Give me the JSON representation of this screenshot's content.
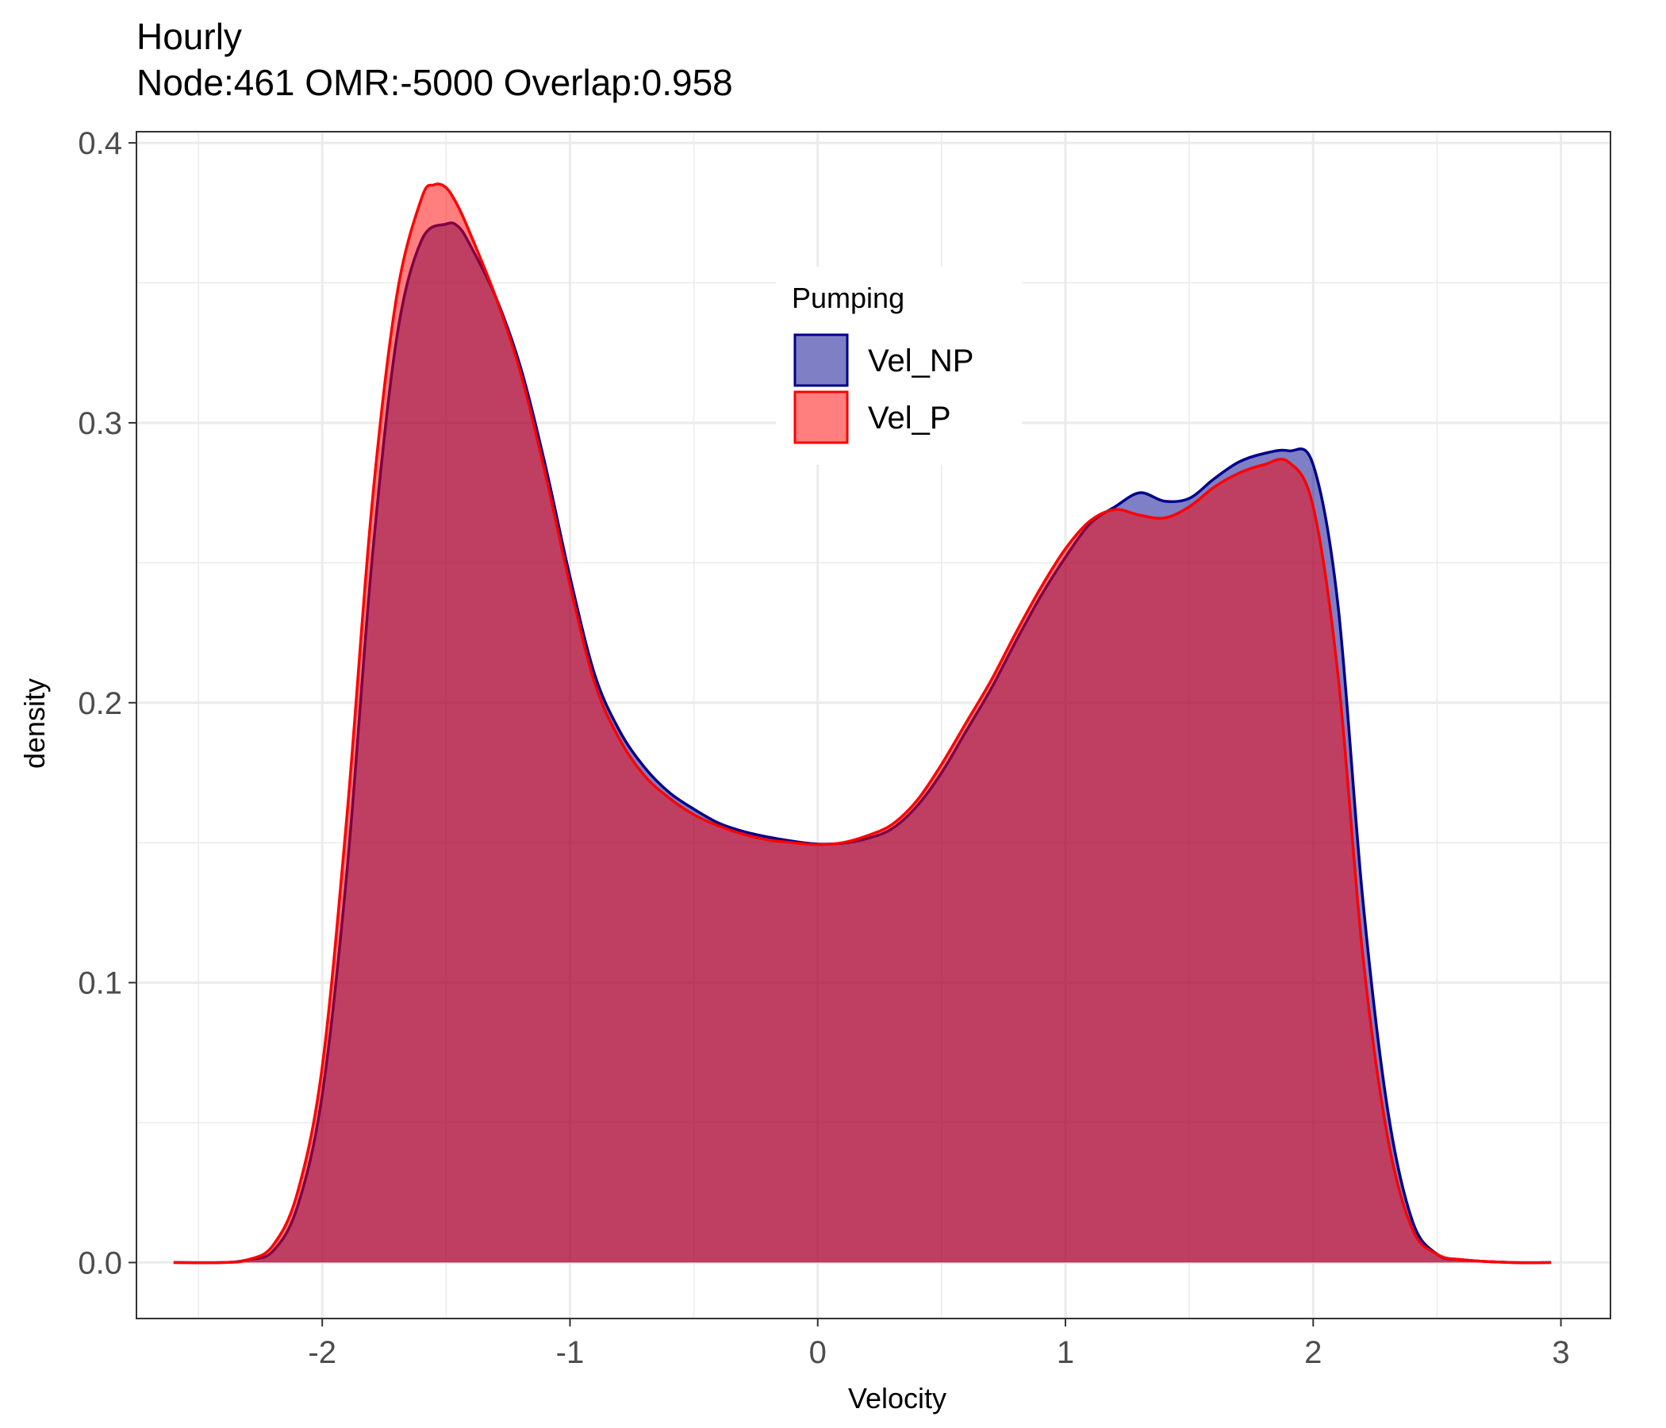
{
  "chart_data": {
    "type": "area",
    "title": "Hourly",
    "subtitle": "Node:461 OMR:-5000  Overlap:0.958",
    "xlabel": "Velocity",
    "ylabel": "density",
    "xlim": [
      -2.75,
      3.2
    ],
    "ylim": [
      -0.02,
      0.404
    ],
    "x_ticks": [
      -2,
      -1,
      0,
      1,
      2,
      3
    ],
    "y_ticks": [
      0.0,
      0.1,
      0.2,
      0.3,
      0.4
    ],
    "x_tick_labels": [
      "-2",
      "-1",
      "0",
      "1",
      "2",
      "3"
    ],
    "y_tick_labels": [
      "0.0",
      "0.1",
      "0.2",
      "0.3",
      "0.4"
    ],
    "grid": true,
    "legend": {
      "title": "Pumping",
      "position": "top-center-inside"
    },
    "series": [
      {
        "name": "Vel_NP",
        "fill": "#00008b",
        "stroke": "#00008b",
        "fill_opacity": 0.5,
        "x": [
          -2.6,
          -2.4,
          -2.3,
          -2.2,
          -2.1,
          -2.0,
          -1.9,
          -1.8,
          -1.7,
          -1.6,
          -1.5,
          -1.45,
          -1.4,
          -1.3,
          -1.2,
          -1.1,
          -1.0,
          -0.9,
          -0.8,
          -0.7,
          -0.6,
          -0.5,
          -0.4,
          -0.3,
          -0.2,
          -0.1,
          0.0,
          0.1,
          0.2,
          0.3,
          0.4,
          0.5,
          0.6,
          0.7,
          0.8,
          0.9,
          1.0,
          1.1,
          1.2,
          1.3,
          1.4,
          1.5,
          1.6,
          1.7,
          1.8,
          1.9,
          2.0,
          2.1,
          2.2,
          2.3,
          2.4,
          2.5,
          2.6,
          2.8,
          2.96
        ],
        "y": [
          0.0,
          0.0,
          0.001,
          0.004,
          0.02,
          0.06,
          0.14,
          0.25,
          0.33,
          0.365,
          0.371,
          0.37,
          0.363,
          0.345,
          0.32,
          0.285,
          0.245,
          0.21,
          0.19,
          0.177,
          0.168,
          0.162,
          0.157,
          0.154,
          0.152,
          0.1505,
          0.1495,
          0.1498,
          0.1515,
          0.155,
          0.163,
          0.175,
          0.19,
          0.205,
          0.222,
          0.238,
          0.252,
          0.264,
          0.27,
          0.275,
          0.272,
          0.273,
          0.28,
          0.286,
          0.289,
          0.29,
          0.285,
          0.235,
          0.13,
          0.055,
          0.015,
          0.003,
          0.001,
          0.0,
          0.0
        ]
      },
      {
        "name": "Vel_P",
        "fill": "#ff0000",
        "stroke": "#ff0000",
        "fill_opacity": 0.5,
        "x": [
          -2.6,
          -2.4,
          -2.3,
          -2.2,
          -2.1,
          -2.0,
          -1.9,
          -1.8,
          -1.7,
          -1.6,
          -1.55,
          -1.5,
          -1.45,
          -1.4,
          -1.3,
          -1.2,
          -1.1,
          -1.0,
          -0.9,
          -0.8,
          -0.7,
          -0.6,
          -0.5,
          -0.4,
          -0.3,
          -0.2,
          -0.1,
          0.0,
          0.1,
          0.2,
          0.3,
          0.4,
          0.5,
          0.6,
          0.7,
          0.8,
          0.9,
          1.0,
          1.1,
          1.2,
          1.3,
          1.4,
          1.5,
          1.6,
          1.7,
          1.8,
          1.9,
          2.0,
          2.1,
          2.2,
          2.3,
          2.4,
          2.5,
          2.6,
          2.8,
          2.96
        ],
        "y": [
          0.0,
          0.0,
          0.001,
          0.006,
          0.025,
          0.07,
          0.16,
          0.27,
          0.345,
          0.38,
          0.385,
          0.384,
          0.377,
          0.367,
          0.345,
          0.318,
          0.282,
          0.242,
          0.207,
          0.187,
          0.174,
          0.166,
          0.16,
          0.156,
          0.153,
          0.151,
          0.15,
          0.1493,
          0.15,
          0.1525,
          0.1565,
          0.165,
          0.178,
          0.193,
          0.208,
          0.225,
          0.241,
          0.255,
          0.265,
          0.269,
          0.267,
          0.266,
          0.27,
          0.277,
          0.282,
          0.285,
          0.286,
          0.27,
          0.21,
          0.11,
          0.045,
          0.012,
          0.003,
          0.001,
          0.0,
          0.0
        ]
      }
    ]
  }
}
